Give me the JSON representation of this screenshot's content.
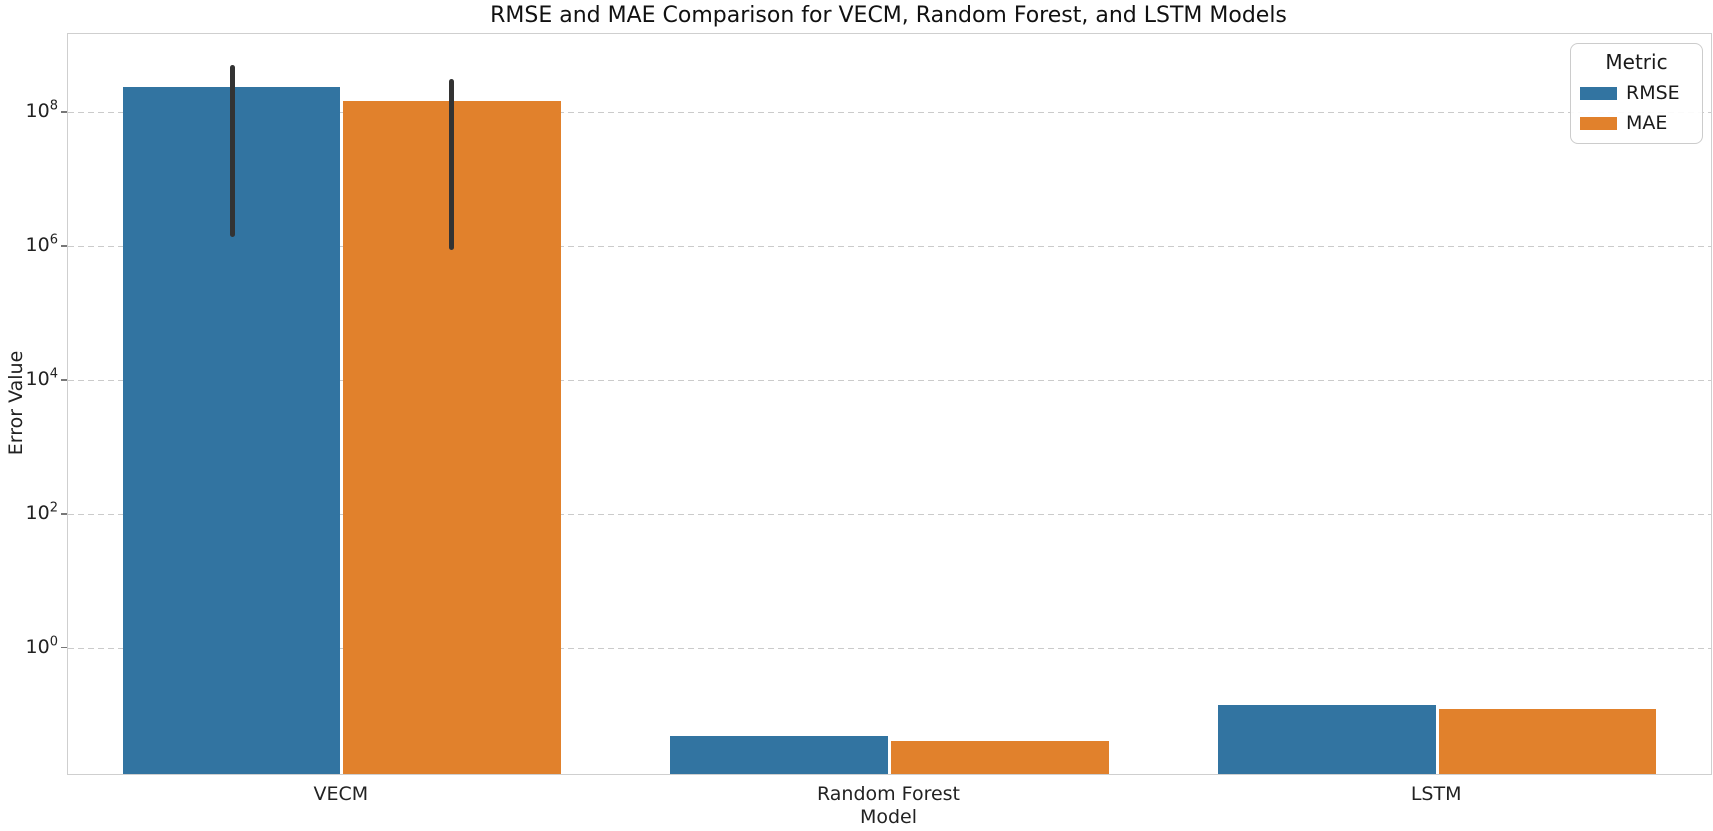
{
  "figure": {
    "background": "#ffffff",
    "text_color": "#1a1a1a",
    "spine_color": "#cfcfcf",
    "gridline_color": "#cbcbcb"
  },
  "chart_data": {
    "type": "bar",
    "title": "RMSE and MAE Comparison for VECM, Random Forest, and LSTM Models",
    "xlabel": "Model",
    "ylabel": "Error Value",
    "categories": [
      "VECM",
      "Random Forest",
      "LSTM"
    ],
    "series": [
      {
        "name": "RMSE",
        "color": "#3274a1",
        "values": [
          240000000,
          0.05,
          0.145
        ],
        "error_low": [
          1400000,
          null,
          null
        ],
        "error_high": [
          520000000,
          null,
          null
        ]
      },
      {
        "name": "MAE",
        "color": "#e1812c",
        "values": [
          150000000,
          0.042,
          0.127
        ],
        "error_low": [
          900000,
          null,
          null
        ],
        "error_high": [
          320000000,
          null,
          null
        ]
      }
    ],
    "yscale": "log",
    "ylim": [
      0.0135,
      1500000000
    ],
    "y_tick_exponents": [
      0,
      2,
      4,
      6,
      8
    ],
    "grid": "horizontal dashed",
    "legend_title": "Metric",
    "legend_position": "upper right",
    "error_bar_color": "#333333",
    "bar_group_width_fraction": 0.8
  }
}
